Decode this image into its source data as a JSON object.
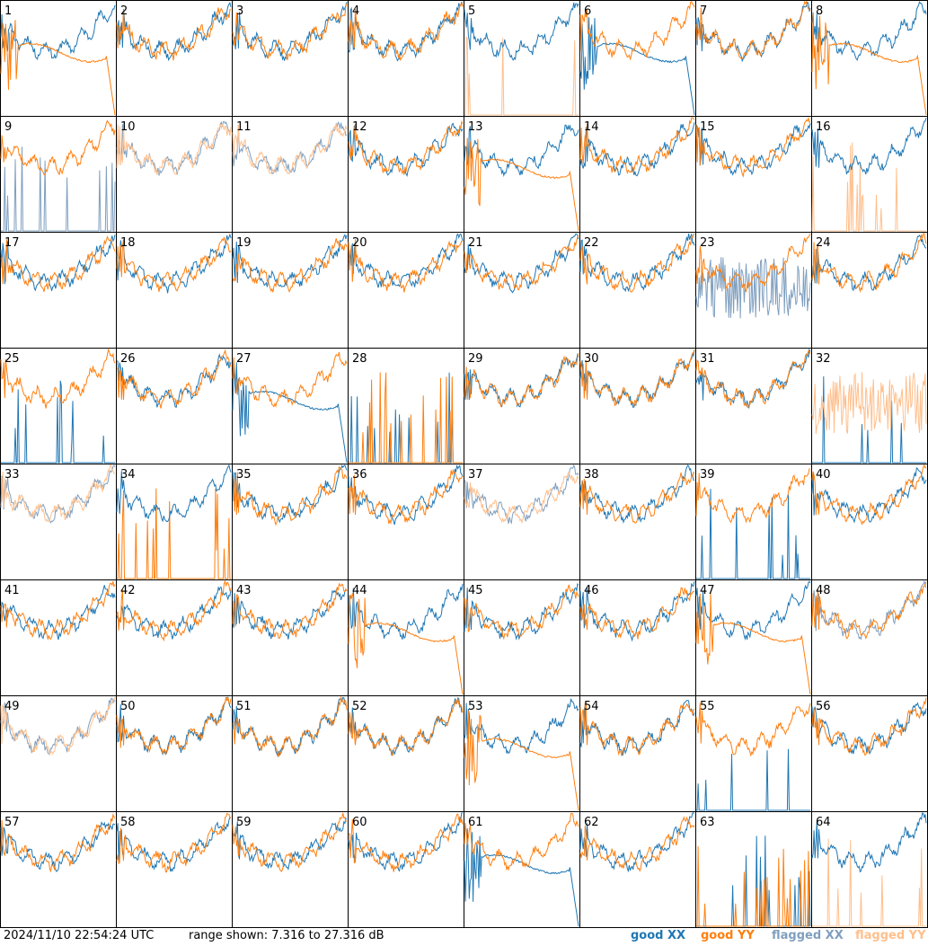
{
  "footer": {
    "timestamp": "2024/11/10 22:54:24 UTC",
    "range": "range shown: 7.316 to 27.316 dB",
    "legend_good_xx": "good XX",
    "legend_good_yy": "good YY",
    "legend_flagged_xx": "flagged XX",
    "legend_flagged_yy": "flagged YY"
  },
  "colors": {
    "good_xx": "#1f77b4",
    "good_yy": "#ff7f0e",
    "flagged_xx": "#7f9fbf",
    "flagged_yy": "#ffbf8c"
  },
  "chart_data": {
    "type": "line",
    "grid_layout": "8x8 small multiples",
    "xlim": [
      0,
      1
    ],
    "ylim_db": [
      7.316,
      27.316
    ],
    "panels": [
      {
        "n": "1",
        "xx": "good",
        "yy": "good",
        "xx_shape": "normal",
        "yy_shape": "decay"
      },
      {
        "n": "2",
        "xx": "good",
        "yy": "good",
        "xx_shape": "normal",
        "yy_shape": "normal"
      },
      {
        "n": "3",
        "xx": "good",
        "yy": "good",
        "xx_shape": "normal",
        "yy_shape": "normal"
      },
      {
        "n": "4",
        "xx": "good",
        "yy": "good",
        "xx_shape": "normal",
        "yy_shape": "normal"
      },
      {
        "n": "5",
        "xx": "good",
        "yy": "flagged",
        "xx_shape": "normal",
        "yy_shape": "spikes"
      },
      {
        "n": "6",
        "xx": "good",
        "yy": "good",
        "xx_shape": "decay",
        "yy_shape": "normal"
      },
      {
        "n": "7",
        "xx": "good",
        "yy": "good",
        "xx_shape": "normal",
        "yy_shape": "normal"
      },
      {
        "n": "8",
        "xx": "good",
        "yy": "good",
        "xx_shape": "normal",
        "yy_shape": "decay"
      },
      {
        "n": "9",
        "xx": "flagged",
        "yy": "good",
        "xx_shape": "spikes",
        "yy_shape": "normal"
      },
      {
        "n": "10",
        "xx": "flagged",
        "yy": "flagged",
        "xx_shape": "normal",
        "yy_shape": "normal"
      },
      {
        "n": "11",
        "xx": "flagged",
        "yy": "flagged",
        "xx_shape": "normal",
        "yy_shape": "normal"
      },
      {
        "n": "12",
        "xx": "good",
        "yy": "good",
        "xx_shape": "normal",
        "yy_shape": "normal"
      },
      {
        "n": "13",
        "xx": "good",
        "yy": "good",
        "xx_shape": "normal",
        "yy_shape": "decay"
      },
      {
        "n": "14",
        "xx": "good",
        "yy": "good",
        "xx_shape": "normal",
        "yy_shape": "normal"
      },
      {
        "n": "15",
        "xx": "good",
        "yy": "good",
        "xx_shape": "normal",
        "yy_shape": "normal"
      },
      {
        "n": "16",
        "xx": "good",
        "yy": "flagged",
        "xx_shape": "normal",
        "yy_shape": "spikes"
      },
      {
        "n": "17",
        "xx": "good",
        "yy": "good",
        "xx_shape": "normal",
        "yy_shape": "normal"
      },
      {
        "n": "18",
        "xx": "good",
        "yy": "good",
        "xx_shape": "normal",
        "yy_shape": "normal"
      },
      {
        "n": "19",
        "xx": "good",
        "yy": "good",
        "xx_shape": "normal",
        "yy_shape": "normal"
      },
      {
        "n": "20",
        "xx": "good",
        "yy": "good",
        "xx_shape": "normal",
        "yy_shape": "normal"
      },
      {
        "n": "21",
        "xx": "good",
        "yy": "good",
        "xx_shape": "normal",
        "yy_shape": "normal"
      },
      {
        "n": "22",
        "xx": "good",
        "yy": "good",
        "xx_shape": "normal",
        "yy_shape": "normal"
      },
      {
        "n": "23",
        "xx": "flagged",
        "yy": "good",
        "xx_shape": "noisy",
        "yy_shape": "normal"
      },
      {
        "n": "24",
        "xx": "good",
        "yy": "good",
        "xx_shape": "normal",
        "yy_shape": "normal"
      },
      {
        "n": "25",
        "xx": "good",
        "yy": "good",
        "xx_shape": "spikes",
        "yy_shape": "normal"
      },
      {
        "n": "26",
        "xx": "good",
        "yy": "good",
        "xx_shape": "normal",
        "yy_shape": "normal"
      },
      {
        "n": "27",
        "xx": "good",
        "yy": "good",
        "xx_shape": "decay",
        "yy_shape": "normal"
      },
      {
        "n": "28",
        "xx": "good",
        "yy": "good",
        "xx_shape": "spikes",
        "yy_shape": "spikes"
      },
      {
        "n": "29",
        "xx": "good",
        "yy": "good",
        "xx_shape": "normal",
        "yy_shape": "normal"
      },
      {
        "n": "30",
        "xx": "good",
        "yy": "good",
        "xx_shape": "normal",
        "yy_shape": "normal"
      },
      {
        "n": "31",
        "xx": "good",
        "yy": "good",
        "xx_shape": "normal",
        "yy_shape": "normal"
      },
      {
        "n": "32",
        "xx": "good",
        "yy": "flagged",
        "xx_shape": "spikes",
        "yy_shape": "noisy"
      },
      {
        "n": "33",
        "xx": "flagged",
        "yy": "flagged",
        "xx_shape": "normal",
        "yy_shape": "normal"
      },
      {
        "n": "34",
        "xx": "good",
        "yy": "good",
        "xx_shape": "normal",
        "yy_shape": "spikes"
      },
      {
        "n": "35",
        "xx": "good",
        "yy": "good",
        "xx_shape": "normal",
        "yy_shape": "normal"
      },
      {
        "n": "36",
        "xx": "good",
        "yy": "good",
        "xx_shape": "normal",
        "yy_shape": "normal"
      },
      {
        "n": "37",
        "xx": "flagged",
        "yy": "flagged",
        "xx_shape": "normal",
        "yy_shape": "normal"
      },
      {
        "n": "38",
        "xx": "good",
        "yy": "good",
        "xx_shape": "normal",
        "yy_shape": "normal"
      },
      {
        "n": "39",
        "xx": "good",
        "yy": "good",
        "xx_shape": "spikes",
        "yy_shape": "normal"
      },
      {
        "n": "40",
        "xx": "good",
        "yy": "good",
        "xx_shape": "normal",
        "yy_shape": "normal"
      },
      {
        "n": "41",
        "xx": "good",
        "yy": "good",
        "xx_shape": "normal",
        "yy_shape": "normal"
      },
      {
        "n": "42",
        "xx": "good",
        "yy": "good",
        "xx_shape": "normal",
        "yy_shape": "normal"
      },
      {
        "n": "43",
        "xx": "good",
        "yy": "good",
        "xx_shape": "normal",
        "yy_shape": "normal"
      },
      {
        "n": "44",
        "xx": "good",
        "yy": "good",
        "xx_shape": "normal",
        "yy_shape": "decay"
      },
      {
        "n": "45",
        "xx": "good",
        "yy": "good",
        "xx_shape": "normal",
        "yy_shape": "normal"
      },
      {
        "n": "46",
        "xx": "good",
        "yy": "good",
        "xx_shape": "normal",
        "yy_shape": "normal"
      },
      {
        "n": "47",
        "xx": "good",
        "yy": "good",
        "xx_shape": "normal",
        "yy_shape": "decay"
      },
      {
        "n": "48",
        "xx": "flagged",
        "yy": "good",
        "xx_shape": "normal",
        "yy_shape": "normal"
      },
      {
        "n": "49",
        "xx": "flagged",
        "yy": "flagged",
        "xx_shape": "normal",
        "yy_shape": "normal"
      },
      {
        "n": "50",
        "xx": "good",
        "yy": "good",
        "xx_shape": "normal",
        "yy_shape": "normal"
      },
      {
        "n": "51",
        "xx": "good",
        "yy": "good",
        "xx_shape": "normal",
        "yy_shape": "normal"
      },
      {
        "n": "52",
        "xx": "good",
        "yy": "good",
        "xx_shape": "normal",
        "yy_shape": "normal"
      },
      {
        "n": "53",
        "xx": "good",
        "yy": "good",
        "xx_shape": "normal",
        "yy_shape": "decay"
      },
      {
        "n": "54",
        "xx": "good",
        "yy": "good",
        "xx_shape": "normal",
        "yy_shape": "normal"
      },
      {
        "n": "55",
        "xx": "good",
        "yy": "good",
        "xx_shape": "spikes",
        "yy_shape": "normal"
      },
      {
        "n": "56",
        "xx": "good",
        "yy": "good",
        "xx_shape": "normal",
        "yy_shape": "normal"
      },
      {
        "n": "57",
        "xx": "good",
        "yy": "good",
        "xx_shape": "normal",
        "yy_shape": "normal"
      },
      {
        "n": "58",
        "xx": "good",
        "yy": "good",
        "xx_shape": "normal",
        "yy_shape": "normal"
      },
      {
        "n": "59",
        "xx": "good",
        "yy": "good",
        "xx_shape": "normal",
        "yy_shape": "normal"
      },
      {
        "n": "60",
        "xx": "good",
        "yy": "good",
        "xx_shape": "normal",
        "yy_shape": "normal"
      },
      {
        "n": "61",
        "xx": "good",
        "yy": "good",
        "xx_shape": "decay",
        "yy_shape": "normal"
      },
      {
        "n": "62",
        "xx": "good",
        "yy": "good",
        "xx_shape": "normal",
        "yy_shape": "normal"
      },
      {
        "n": "63",
        "xx": "good",
        "yy": "good",
        "xx_shape": "spikes",
        "yy_shape": "spikes"
      },
      {
        "n": "64",
        "xx": "good",
        "yy": "flagged",
        "xx_shape": "normal",
        "yy_shape": "spikes"
      }
    ]
  }
}
